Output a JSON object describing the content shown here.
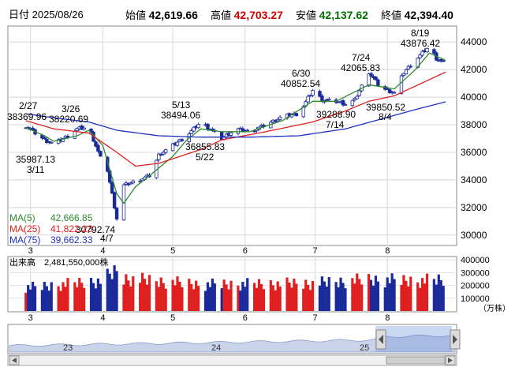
{
  "header": {
    "date_label": "日付",
    "date": "2025/08/26",
    "open_label": "始値",
    "open": "42,619.66",
    "high_label": "高値",
    "high": "42,703.27",
    "low_label": "安値",
    "low": "42,137.62",
    "close_label": "終値",
    "close": "42,394.40"
  },
  "colors": {
    "up": "#ffffff",
    "down": "#1a2a9a",
    "ma5": "#2e8b2e",
    "ma25": "#e02020",
    "ma75": "#2030c0",
    "vol_up": "#e02020",
    "vol_down": "#1a2a9a",
    "high_text": "#d00000",
    "low_text": "#007000"
  },
  "legend": {
    "ma5_label": "MA(5)",
    "ma5_value": "42,666.85",
    "ma25_label": "MA(25)",
    "ma25_value": "41,822.23",
    "ma75_label": "MA(75)",
    "ma75_value": "39,662.33"
  },
  "volume_header": {
    "label": "出来高",
    "value": "2,481,550,000株"
  },
  "volume_unit": "（万株）",
  "navigator": {
    "labels": [
      "23",
      "24",
      "25"
    ]
  },
  "chart_data": [
    {
      "type": "candlestick",
      "x_axis_labels": [
        "3",
        "4",
        "5",
        "6",
        "7",
        "8"
      ],
      "y_ticks": [
        "44000",
        "42000",
        "40000",
        "38000",
        "36000",
        "34000",
        "32000",
        "30000"
      ],
      "ylim": [
        29300,
        45100
      ],
      "grid": true,
      "annotations": [
        {
          "value": "38369.96",
          "date": "2/27"
        },
        {
          "value": "38220.69",
          "date": "3/26"
        },
        {
          "value": "35987.13",
          "date": "3/11"
        },
        {
          "value": "30792.74",
          "date": "4/7"
        },
        {
          "value": "38494.06",
          "date": "5/13"
        },
        {
          "value": "36855.83",
          "date": "5/22"
        },
        {
          "value": "40852.54",
          "date": "6/30"
        },
        {
          "value": "39288.90",
          "date": "7/14"
        },
        {
          "value": "42065.83",
          "date": "7/24"
        },
        {
          "value": "39850.52",
          "date": "8/4"
        },
        {
          "value": "43876.42",
          "date": "8/19"
        }
      ],
      "close_path": [
        [
          "2/27",
          37900
        ],
        [
          "3/3",
          37400
        ],
        [
          "3/7",
          36900
        ],
        [
          "3/11",
          36600
        ],
        [
          "3/17",
          37200
        ],
        [
          "3/21",
          37700
        ],
        [
          "3/26",
          37800
        ],
        [
          "3/31",
          35600
        ],
        [
          "4/3",
          34700
        ],
        [
          "4/7",
          31200
        ],
        [
          "4/10",
          33600
        ],
        [
          "4/15",
          33900
        ],
        [
          "4/21",
          34300
        ],
        [
          "4/25",
          35800
        ],
        [
          "5/1",
          36500
        ],
        [
          "5/7",
          37200
        ],
        [
          "5/13",
          38200
        ],
        [
          "5/16",
          37800
        ],
        [
          "5/22",
          37000
        ],
        [
          "5/28",
          37700
        ],
        [
          "6/3",
          37500
        ],
        [
          "6/10",
          38000
        ],
        [
          "6/17",
          38600
        ],
        [
          "6/24",
          38800
        ],
        [
          "6/30",
          40500
        ],
        [
          "7/4",
          39800
        ],
        [
          "7/10",
          39700
        ],
        [
          "7/14",
          39500
        ],
        [
          "7/18",
          39800
        ],
        [
          "7/24",
          41800
        ],
        [
          "7/29",
          40700
        ],
        [
          "8/4",
          40300
        ],
        [
          "8/8",
          41800
        ],
        [
          "8/13",
          42700
        ],
        [
          "8/19",
          43700
        ],
        [
          "8/22",
          42800
        ],
        [
          "8/26",
          42394
        ]
      ],
      "series": [
        {
          "name": "MA(5)",
          "values": [
            [
              "2/27",
              37800
            ],
            [
              "3/7",
              37200
            ],
            [
              "3/11",
              36800
            ],
            [
              "3/21",
              37200
            ],
            [
              "3/26",
              37600
            ],
            [
              "4/1",
              36500
            ],
            [
              "4/7",
              33000
            ],
            [
              "4/10",
              32300
            ],
            [
              "4/15",
              33500
            ],
            [
              "4/21",
              34300
            ],
            [
              "5/1",
              35700
            ],
            [
              "5/7",
              36900
            ],
            [
              "5/13",
              37700
            ],
            [
              "5/22",
              37500
            ],
            [
              "6/3",
              37500
            ],
            [
              "6/17",
              38300
            ],
            [
              "6/30",
              39700
            ],
            [
              "7/10",
              39700
            ],
            [
              "7/24",
              40900
            ],
            [
              "8/4",
              40600
            ],
            [
              "8/13",
              42000
            ],
            [
              "8/19",
              43200
            ],
            [
              "8/26",
              42667
            ]
          ]
        },
        {
          "name": "MA(25)",
          "values": [
            [
              "2/27",
              38300
            ],
            [
              "3/11",
              37700
            ],
            [
              "3/26",
              37400
            ],
            [
              "4/7",
              36000
            ],
            [
              "4/15",
              35000
            ],
            [
              "4/25",
              35200
            ],
            [
              "5/13",
              36200
            ],
            [
              "5/22",
              36900
            ],
            [
              "6/10",
              37500
            ],
            [
              "6/30",
              38200
            ],
            [
              "7/14",
              39000
            ],
            [
              "7/24",
              39700
            ],
            [
              "8/4",
              40100
            ],
            [
              "8/13",
              40800
            ],
            [
              "8/26",
              41822
            ]
          ]
        },
        {
          "name": "MA(75)",
          "values": [
            [
              "2/27",
              38800
            ],
            [
              "3/11",
              38500
            ],
            [
              "3/26",
              38200
            ],
            [
              "4/7",
              37600
            ],
            [
              "4/25",
              37200
            ],
            [
              "5/13",
              37100
            ],
            [
              "6/3",
              37100
            ],
            [
              "6/24",
              37200
            ],
            [
              "7/14",
              37700
            ],
            [
              "7/29",
              38400
            ],
            [
              "8/13",
              39100
            ],
            [
              "8/26",
              39662
            ]
          ]
        }
      ]
    },
    {
      "type": "bar",
      "y_ticks": [
        "400000",
        "300000",
        "200000",
        "100000"
      ],
      "ylim": [
        0,
        420000
      ],
      "values_sample": [
        [
          "3/3",
          190000
        ],
        [
          "3/31",
          240000
        ],
        [
          "4/7",
          320000
        ],
        [
          "4/10",
          260000
        ],
        [
          "5/13",
          210000
        ],
        [
          "6/30",
          220000
        ],
        [
          "7/24",
          250000
        ],
        [
          "8/13",
          240000
        ],
        [
          "8/26",
          248155
        ]
      ]
    }
  ]
}
